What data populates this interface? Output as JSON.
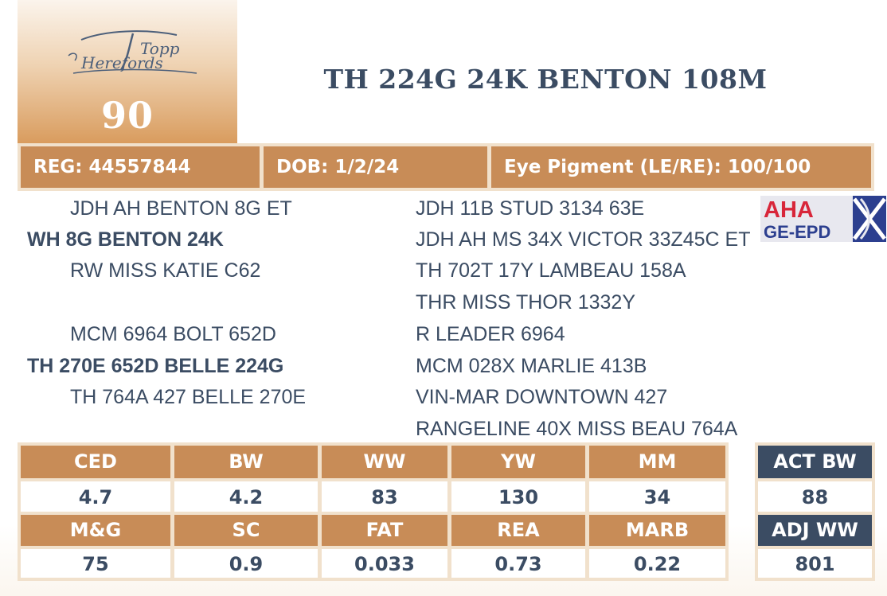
{
  "logo": {
    "text_line1": "Topp",
    "text_line2": "Herefords"
  },
  "lot_number": "90",
  "animal_name": "TH 224G 24K BENTON 108M",
  "info_bar": {
    "reg": "REG: 44557844",
    "dob": "DOB: 1/2/24",
    "eye": "Eye Pigment (LE/RE): 100/100"
  },
  "pedigree": {
    "left": [
      {
        "text": "JDH AH BENTON 8G ET",
        "bold": false
      },
      {
        "text": "WH 8G BENTON 24K",
        "bold": true
      },
      {
        "text": "RW MISS KATIE C62",
        "bold": false
      },
      {
        "text": "MCM 6964 BOLT 652D",
        "bold": false
      },
      {
        "text": "TH 270E 652D BELLE 224G",
        "bold": true
      },
      {
        "text": "TH 764A 427 BELLE 270E",
        "bold": false
      }
    ],
    "right": [
      "JDH 11B STUD 3134 63E",
      "JDH AH MS 34X VICTOR 33Z45C ET",
      "TH 702T 17Y LAMBEAU 158A",
      "THR MISS THOR 1332Y",
      "R LEADER 6964",
      "MCM 028X MARLIE 413B",
      "VIN-MAR DOWNTOWN 427",
      "RANGELINE 40X MISS BEAU 764A"
    ]
  },
  "aha_badge": {
    "line1": "AHA",
    "line2": "GE-EPD"
  },
  "epd": {
    "row1_headers": [
      "CED",
      "BW",
      "WW",
      "YW",
      "MM"
    ],
    "row1_values": [
      "4.7",
      "4.2",
      "83",
      "130",
      "34"
    ],
    "row2_headers": [
      "M&G",
      "SC",
      "FAT",
      "REA",
      "MARB"
    ],
    "row2_values": [
      "75",
      "0.9",
      "0.033",
      "0.73",
      "0.22"
    ]
  },
  "actuals": {
    "act_bw_label": "ACT BW",
    "act_bw_value": "88",
    "adj_ww_label": "ADJ WW",
    "adj_ww_value": "801"
  },
  "colors": {
    "accent_tan": "#c88c57",
    "frame_cream": "#f1e1cc",
    "navy": "#3b4c63",
    "aha_red": "#d8263a",
    "aha_blue": "#2c3f8f"
  }
}
